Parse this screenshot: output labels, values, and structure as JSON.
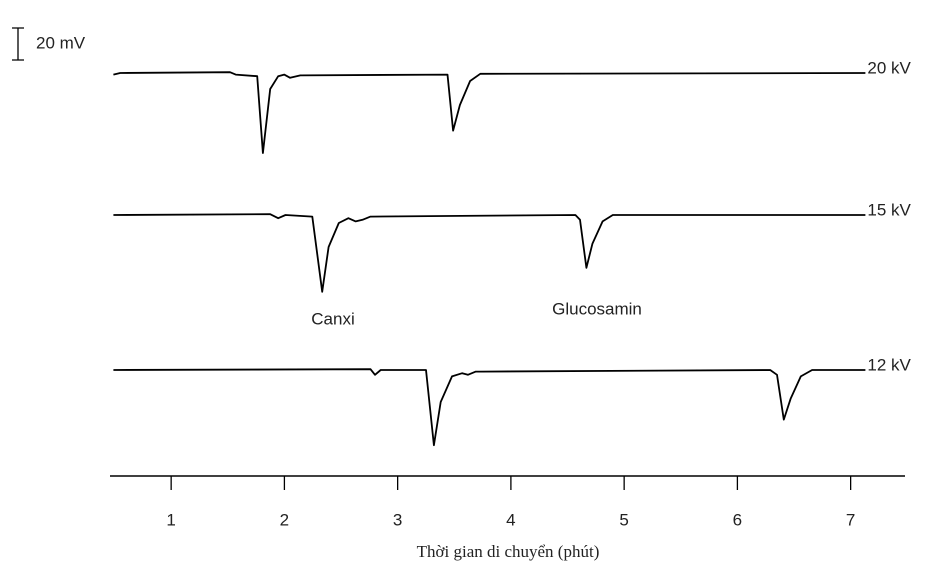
{
  "chart_data": {
    "type": "line",
    "xlabel": "Thời gian di chuyển (phút)",
    "xlim": [
      0.46,
      7.48
    ],
    "xticks": [
      1,
      2,
      3,
      4,
      5,
      6,
      7
    ],
    "scale_bar": {
      "value": 20,
      "label": "20 mV"
    },
    "annotations": [
      "Canxi",
      "Glucosamin"
    ],
    "series": [
      {
        "name": "20 kV",
        "color": "#000000",
        "x": [
          0.49,
          0.55,
          1.52,
          1.57,
          1.76,
          1.81,
          1.875,
          1.945,
          1.998,
          2.05,
          2.14,
          3.44,
          3.49,
          3.55,
          3.64,
          3.73,
          7.13
        ],
        "values": [
          -1,
          0,
          0.5,
          -1,
          -2,
          -50,
          -10,
          -2,
          -1,
          -3,
          -1.5,
          -1,
          -36,
          -20,
          -5,
          -0.5,
          0
        ]
      },
      {
        "name": "15 kV",
        "color": "#000000",
        "x": [
          0.49,
          1.875,
          1.945,
          2.01,
          2.246,
          2.334,
          2.39,
          2.48,
          2.565,
          2.63,
          2.69,
          2.76,
          4.57,
          4.61,
          4.667,
          4.72,
          4.81,
          4.9,
          7.13
        ],
        "values": [
          0,
          0.5,
          -2,
          0,
          -1,
          -48,
          -20,
          -5,
          -2,
          -4,
          -3,
          -1,
          0,
          -3,
          -33,
          -18,
          -4,
          0,
          0
        ]
      },
      {
        "name": "12 kV",
        "color": "#000000",
        "x": [
          0.49,
          2.76,
          2.8,
          2.85,
          3.25,
          3.32,
          3.38,
          3.48,
          3.57,
          3.62,
          3.69,
          3.73,
          6.29,
          6.35,
          6.41,
          6.47,
          6.56,
          6.66,
          7.13
        ],
        "values": [
          0,
          0.5,
          -3,
          0,
          0,
          -47,
          -20,
          -4,
          -2,
          -3,
          -1,
          -1,
          0,
          -3,
          -31,
          -18,
          -4,
          0,
          0
        ]
      }
    ]
  }
}
